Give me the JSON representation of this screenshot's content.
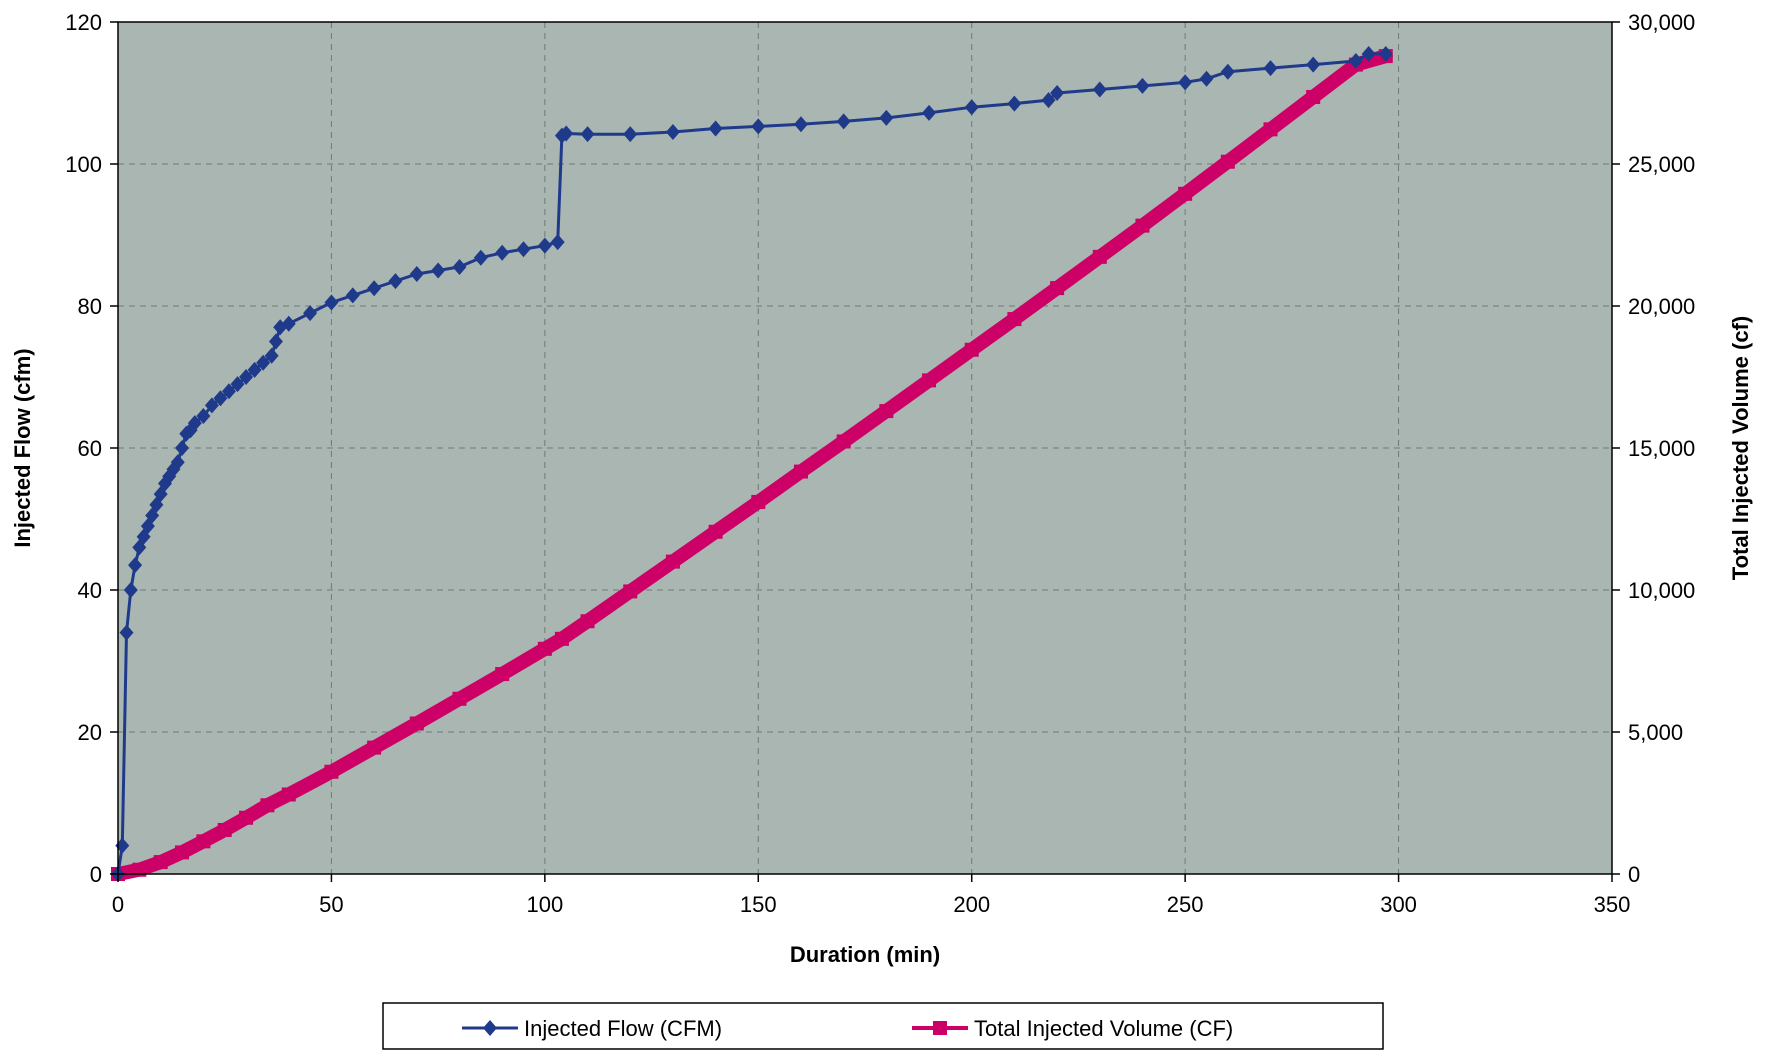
{
  "chart_data": {
    "type": "line",
    "title": "",
    "xlabel": "Duration (min)",
    "ylabel": "Injected Flow (cfm)",
    "y2label": "Total Injected Volume (cf)",
    "xlim": [
      0,
      350
    ],
    "ylim": [
      0,
      120
    ],
    "y2lim": [
      0,
      30000
    ],
    "x_ticks": [
      "0",
      "50",
      "100",
      "150",
      "200",
      "250",
      "300",
      "350"
    ],
    "y_ticks": [
      "0",
      "20",
      "40",
      "60",
      "80",
      "100",
      "120"
    ],
    "y2_ticks": [
      "0",
      "5,000",
      "10,000",
      "15,000",
      "20,000",
      "25,000",
      "30,000"
    ],
    "grid": true,
    "legend_position": "bottom",
    "colors": {
      "plot_bg": "#a9b6b1",
      "flow": "#1f3a8a",
      "volume": "#cc0066",
      "grid": "#6f7a76"
    },
    "series": [
      {
        "name": "Injected Flow (CFM)",
        "axis": "left",
        "marker": "diamond",
        "points": [
          [
            0,
            0
          ],
          [
            1,
            4
          ],
          [
            2,
            34
          ],
          [
            3,
            40
          ],
          [
            4,
            43.5
          ],
          [
            5,
            46
          ],
          [
            6,
            47.5
          ],
          [
            7,
            49
          ],
          [
            8,
            50.5
          ],
          [
            9,
            52
          ],
          [
            10,
            53.5
          ],
          [
            11,
            55
          ],
          [
            12,
            56
          ],
          [
            13,
            57
          ],
          [
            14,
            58
          ],
          [
            15,
            60
          ],
          [
            16,
            62
          ],
          [
            17,
            62.5
          ],
          [
            18,
            63.5
          ],
          [
            20,
            64.5
          ],
          [
            22,
            66
          ],
          [
            24,
            67
          ],
          [
            26,
            68
          ],
          [
            28,
            69
          ],
          [
            30,
            70
          ],
          [
            32,
            71
          ],
          [
            34,
            72
          ],
          [
            36,
            73
          ],
          [
            37,
            75
          ],
          [
            38,
            77
          ],
          [
            40,
            77.5
          ],
          [
            45,
            79
          ],
          [
            50,
            80.5
          ],
          [
            55,
            81.5
          ],
          [
            60,
            82.5
          ],
          [
            65,
            83.5
          ],
          [
            70,
            84.5
          ],
          [
            75,
            85
          ],
          [
            80,
            85.5
          ],
          [
            85,
            86.8
          ],
          [
            90,
            87.5
          ],
          [
            95,
            88
          ],
          [
            100,
            88.5
          ],
          [
            103,
            89
          ],
          [
            104,
            104
          ],
          [
            105,
            104.3
          ],
          [
            110,
            104.2
          ],
          [
            120,
            104.2
          ],
          [
            130,
            104.5
          ],
          [
            140,
            105
          ],
          [
            150,
            105.3
          ],
          [
            160,
            105.6
          ],
          [
            170,
            106
          ],
          [
            180,
            106.5
          ],
          [
            190,
            107.2
          ],
          [
            200,
            108
          ],
          [
            210,
            108.5
          ],
          [
            218,
            109
          ],
          [
            220,
            110
          ],
          [
            230,
            110.5
          ],
          [
            240,
            111
          ],
          [
            250,
            111.5
          ],
          [
            255,
            112
          ],
          [
            260,
            113
          ],
          [
            270,
            113.5
          ],
          [
            280,
            114
          ],
          [
            290,
            114.5
          ],
          [
            293,
            115.5
          ],
          [
            297,
            115.5
          ]
        ]
      },
      {
        "name": "Total Injected Volume (CF)",
        "axis": "right",
        "marker": "square",
        "points": [
          [
            0,
            0
          ],
          [
            5,
            150
          ],
          [
            10,
            420
          ],
          [
            15,
            760
          ],
          [
            20,
            1150
          ],
          [
            25,
            1550
          ],
          [
            30,
            1980
          ],
          [
            35,
            2420
          ],
          [
            40,
            2800
          ],
          [
            50,
            3600
          ],
          [
            60,
            4450
          ],
          [
            70,
            5300
          ],
          [
            80,
            6170
          ],
          [
            90,
            7040
          ],
          [
            100,
            7930
          ],
          [
            104,
            8280
          ],
          [
            110,
            8900
          ],
          [
            120,
            9950
          ],
          [
            130,
            11000
          ],
          [
            140,
            12050
          ],
          [
            150,
            13100
          ],
          [
            160,
            14170
          ],
          [
            170,
            15230
          ],
          [
            180,
            16300
          ],
          [
            190,
            17380
          ],
          [
            200,
            18460
          ],
          [
            210,
            19540
          ],
          [
            220,
            20630
          ],
          [
            230,
            21730
          ],
          [
            240,
            22830
          ],
          [
            250,
            23950
          ],
          [
            260,
            25080
          ],
          [
            270,
            26220
          ],
          [
            280,
            27360
          ],
          [
            290,
            28500
          ],
          [
            297,
            28800
          ]
        ]
      }
    ]
  }
}
